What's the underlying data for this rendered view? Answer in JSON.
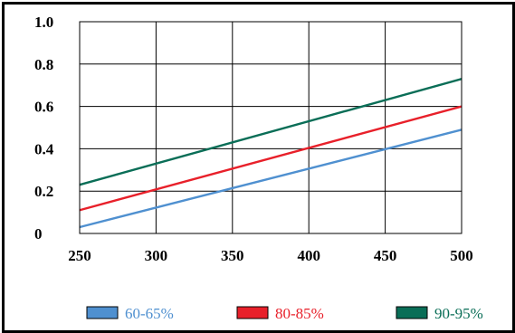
{
  "chart_data": {
    "type": "line",
    "x": [
      250,
      500
    ],
    "series": [
      {
        "name": "60-65%",
        "color": "#4f90d0",
        "values": [
          0.03,
          0.49
        ]
      },
      {
        "name": "80-85%",
        "color": "#e8202a",
        "values": [
          0.11,
          0.6
        ]
      },
      {
        "name": "90-95%",
        "color": "#0a6e57",
        "values": [
          0.23,
          0.73
        ]
      }
    ],
    "xlim": [
      250,
      500
    ],
    "ylim": [
      0,
      1.0
    ],
    "x_ticks": [
      250,
      300,
      350,
      400,
      450,
      500
    ],
    "x_tick_labels": [
      "250",
      "300",
      "350",
      "400",
      "450",
      "500"
    ],
    "y_ticks": [
      0,
      0.2,
      0.4,
      0.6,
      0.8,
      1.0
    ],
    "y_tick_labels": [
      "0",
      "0.2",
      "0.4",
      "0.6",
      "0.8",
      "1.0"
    ],
    "grid": true,
    "legend": "bottom",
    "title": "",
    "xlabel": "",
    "ylabel": ""
  }
}
